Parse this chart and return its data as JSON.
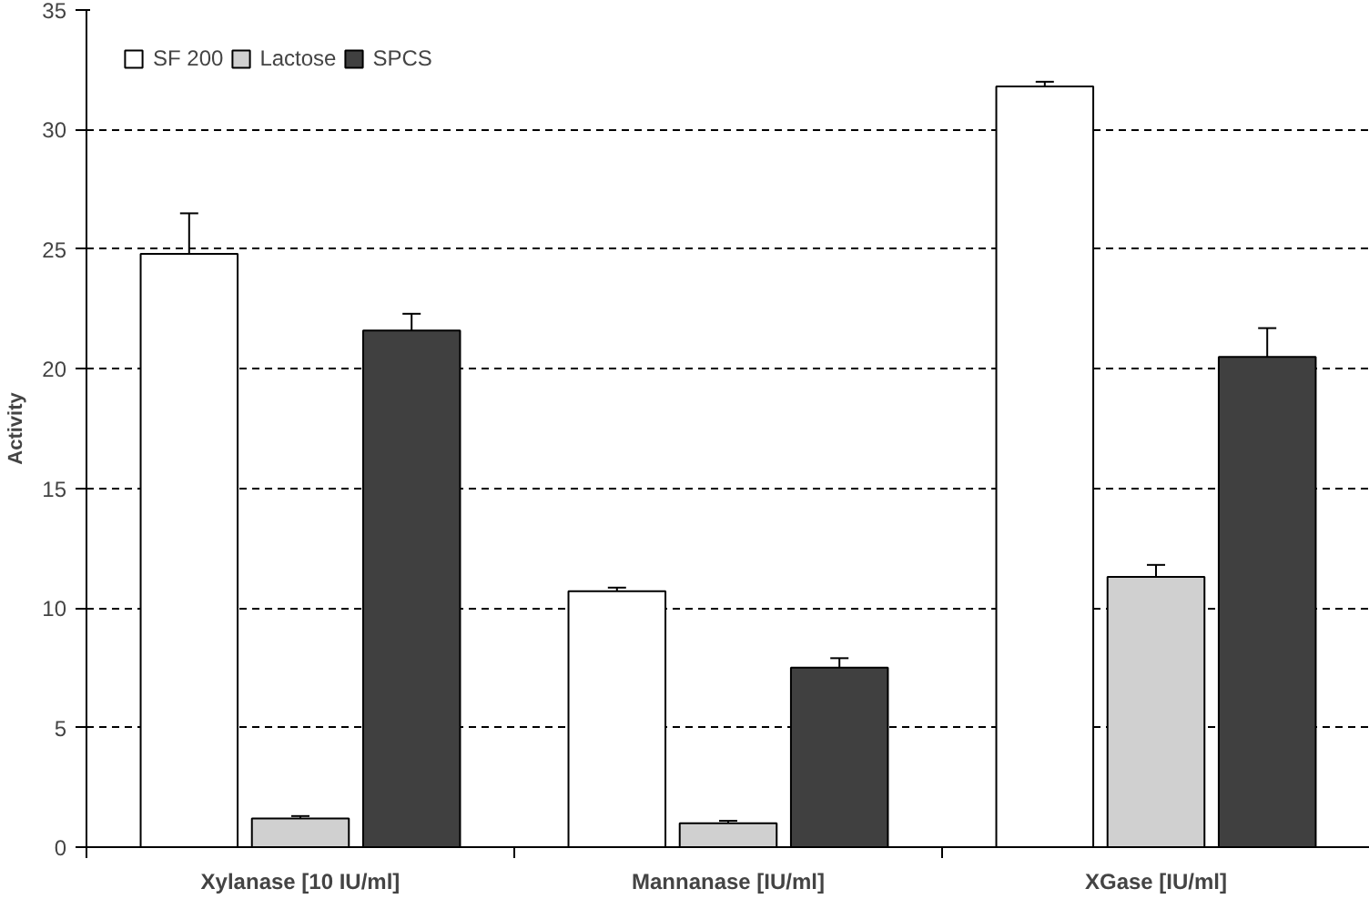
{
  "chart_data": {
    "type": "bar",
    "ylabel": "Activity",
    "categories": [
      "Xylanase [10 IU/ml]",
      "Mannanase [IU/ml]",
      "XGase [IU/ml]"
    ],
    "ylim": [
      0,
      35
    ],
    "yticks": [
      0,
      5,
      10,
      15,
      20,
      25,
      30,
      35
    ],
    "grid": "y",
    "legend": "top left",
    "series": [
      {
        "name": "SF 200",
        "color": "#ffffff",
        "values": [
          24.8,
          10.7,
          31.8
        ],
        "errors": [
          1.7,
          0.15,
          0.2
        ]
      },
      {
        "name": "Lactose",
        "color": "#d0d0d0",
        "values": [
          1.2,
          1.0,
          11.3
        ],
        "errors": [
          0.1,
          0.1,
          0.5
        ]
      },
      {
        "name": "SPCS",
        "color": "#404040",
        "values": [
          21.6,
          7.5,
          20.5
        ],
        "errors": [
          0.7,
          0.4,
          1.2
        ]
      }
    ]
  }
}
